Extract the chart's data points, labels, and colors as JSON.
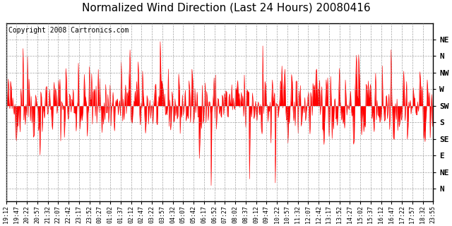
{
  "title": "Normalized Wind Direction (Last 24 Hours) 20080416",
  "copyright_text": "Copyright 2008 Cartronics.com",
  "line_color": "#ff0000",
  "background_color": "#ffffff",
  "plot_bg_color": "#ffffff",
  "grid_color": "#999999",
  "ytick_labels": [
    "NE",
    "N",
    "NW",
    "W",
    "SW",
    "S",
    "SE",
    "E",
    "NE",
    "N"
  ],
  "ytick_values": [
    1.0,
    0.875,
    0.75,
    0.625,
    0.5,
    0.375,
    0.25,
    0.125,
    0.0,
    -0.125
  ],
  "ylim": [
    -0.22,
    1.12
  ],
  "num_points": 580,
  "seed": 42,
  "xtick_labels": [
    "19:12",
    "19:47",
    "20:22",
    "20:57",
    "21:32",
    "22:07",
    "22:42",
    "23:17",
    "23:52",
    "00:27",
    "01:02",
    "01:37",
    "02:12",
    "02:47",
    "03:22",
    "03:57",
    "04:32",
    "05:07",
    "05:42",
    "06:17",
    "06:52",
    "07:27",
    "08:02",
    "08:37",
    "09:12",
    "09:47",
    "10:22",
    "10:57",
    "11:32",
    "12:07",
    "12:42",
    "13:17",
    "13:52",
    "14:27",
    "15:02",
    "15:37",
    "16:12",
    "16:47",
    "17:22",
    "17:57",
    "18:32",
    "23:55"
  ],
  "title_fontsize": 11,
  "copyright_fontsize": 7,
  "ytick_fontsize": 8,
  "xtick_fontsize": 6
}
